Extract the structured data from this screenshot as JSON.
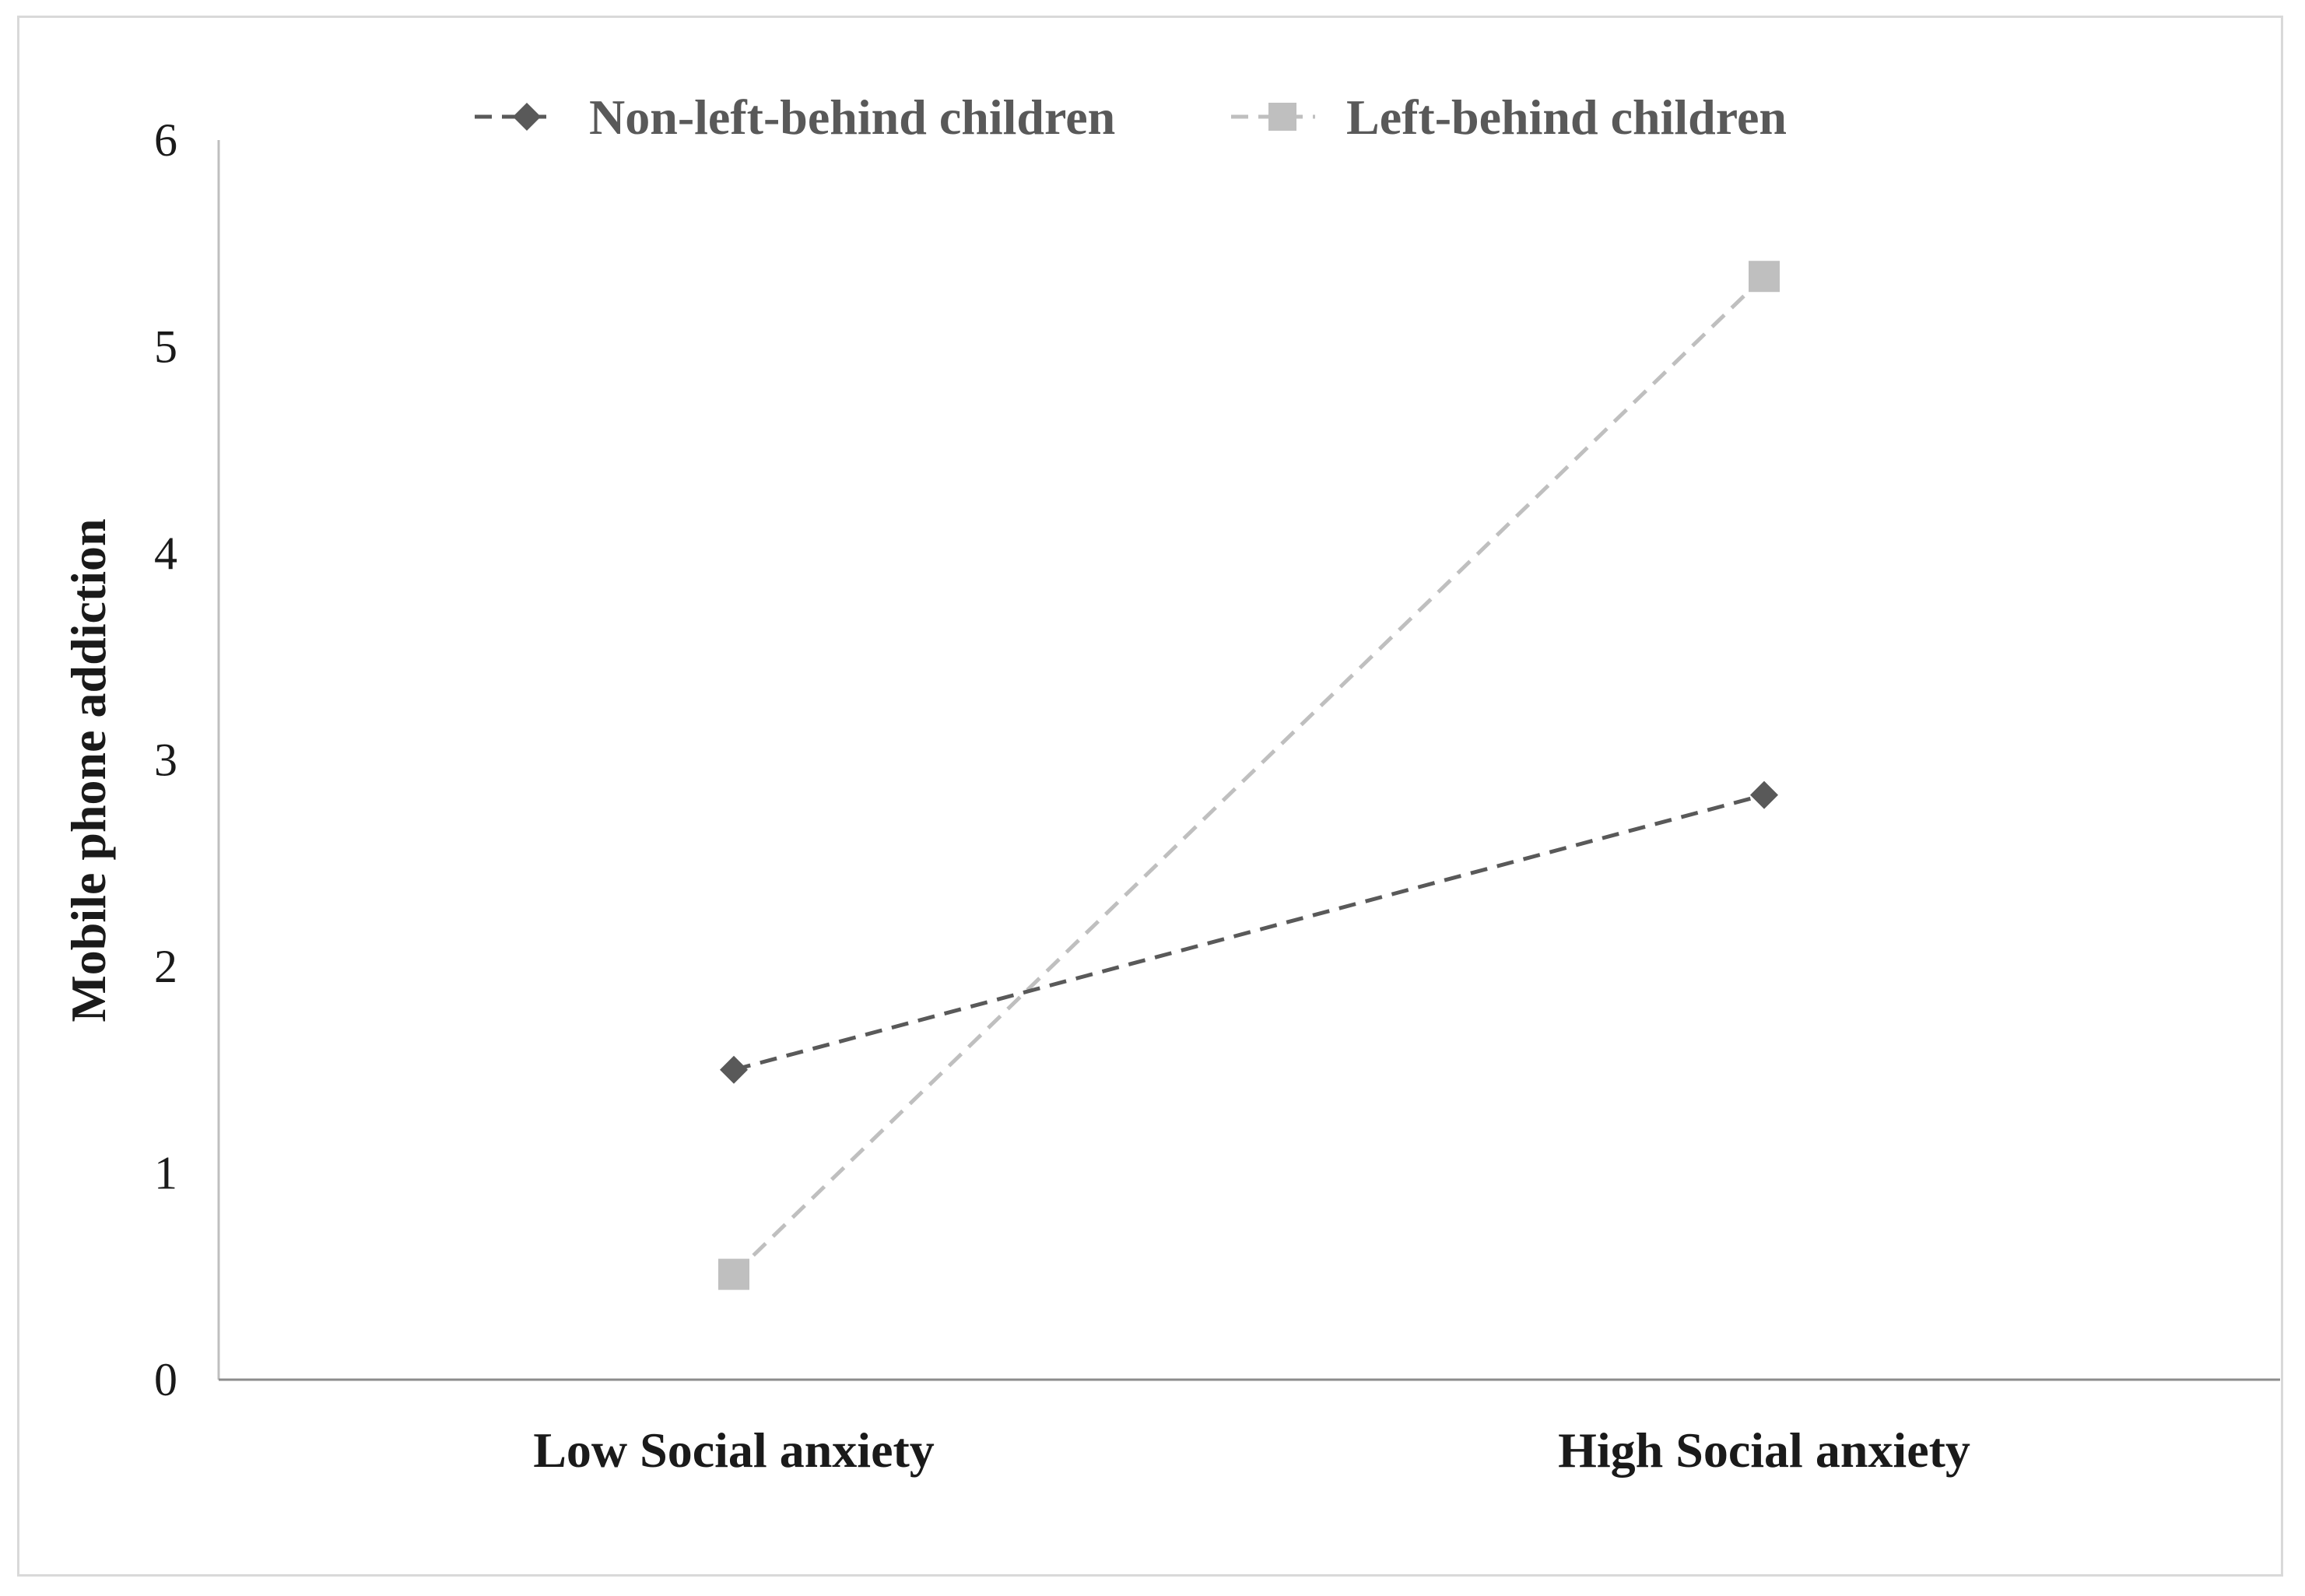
{
  "chart_data": {
    "type": "line",
    "title": "",
    "categories": [
      "Low Social anxiety",
      "High Social anxiety"
    ],
    "xlabel": "",
    "ylabel": "Mobile phone addiction",
    "ylim": [
      0,
      6
    ],
    "yticks": [
      "0",
      "1",
      "2",
      "3",
      "4",
      "5",
      "6"
    ],
    "grid": false,
    "legend_position": "top",
    "series": [
      {
        "name": "Non-left-behind children",
        "values": [
          1.5,
          2.83
        ],
        "color": "#595959",
        "marker": "diamond",
        "line_style": "dashed"
      },
      {
        "name": "Left-behind children",
        "values": [
          0.51,
          5.34
        ],
        "color": "#bfbfbf",
        "marker": "square",
        "line_style": "dashed"
      }
    ]
  }
}
